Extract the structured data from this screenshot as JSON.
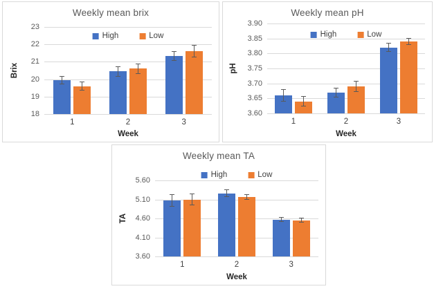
{
  "page": {
    "background": "#ffffff"
  },
  "colors": {
    "high": "#4472C4",
    "low": "#ED7D31",
    "gridline": "#D9D9D9",
    "error_bar": "#595959",
    "panel_border": "#D9D9D9",
    "title_text": "#595959",
    "tick_text": "#595959",
    "axis_title_text": "#262626"
  },
  "chart_data": [
    {
      "type": "bar",
      "title": "Weekly mean brix",
      "xlabel": "Week",
      "ylabel": "Brix",
      "categories": [
        "1",
        "2",
        "3"
      ],
      "series": [
        {
          "name": "High",
          "color_key": "high",
          "values": [
            19.95,
            20.45,
            21.35
          ],
          "errors": [
            0.25,
            0.3,
            0.28
          ]
        },
        {
          "name": "Low",
          "color_key": "low",
          "values": [
            19.6,
            20.6,
            21.6
          ],
          "errors": [
            0.25,
            0.3,
            0.35
          ]
        }
      ],
      "ylim": [
        18,
        23
      ],
      "yticks": [
        "18",
        "19",
        "20",
        "21",
        "22",
        "23"
      ],
      "grid": true,
      "legend_position": "top-center"
    },
    {
      "type": "bar",
      "title": "Weekly mean pH",
      "xlabel": "Week",
      "ylabel": "pH",
      "categories": [
        "1",
        "2",
        "3"
      ],
      "series": [
        {
          "name": "High",
          "color_key": "high",
          "values": [
            3.66,
            3.67,
            3.82
          ],
          "errors": [
            0.02,
            0.016,
            0.015
          ]
        },
        {
          "name": "Low",
          "color_key": "low",
          "values": [
            3.64,
            3.69,
            3.84
          ],
          "errors": [
            0.018,
            0.019,
            0.012
          ]
        }
      ],
      "ylim": [
        3.6,
        3.9
      ],
      "yticks": [
        "3.60",
        "3.65",
        "3.70",
        "3.75",
        "3.80",
        "3.85",
        "3.90"
      ],
      "grid": true,
      "legend_position": "top-center"
    },
    {
      "type": "bar",
      "title": "Weekly mean TA",
      "xlabel": "Week",
      "ylabel": "TA",
      "categories": [
        "1",
        "2",
        "3"
      ],
      "series": [
        {
          "name": "High",
          "color_key": "high",
          "values": [
            5.07,
            5.26,
            4.57
          ],
          "errors": [
            0.17,
            0.1,
            0.07
          ]
        },
        {
          "name": "Low",
          "color_key": "low",
          "values": [
            5.1,
            5.16,
            4.55
          ],
          "errors": [
            0.15,
            0.07,
            0.06
          ]
        }
      ],
      "ylim": [
        3.6,
        5.6
      ],
      "yticks": [
        "3.60",
        "4.10",
        "4.60",
        "5.10",
        "5.60"
      ],
      "grid": true,
      "legend_position": "top-center"
    }
  ]
}
